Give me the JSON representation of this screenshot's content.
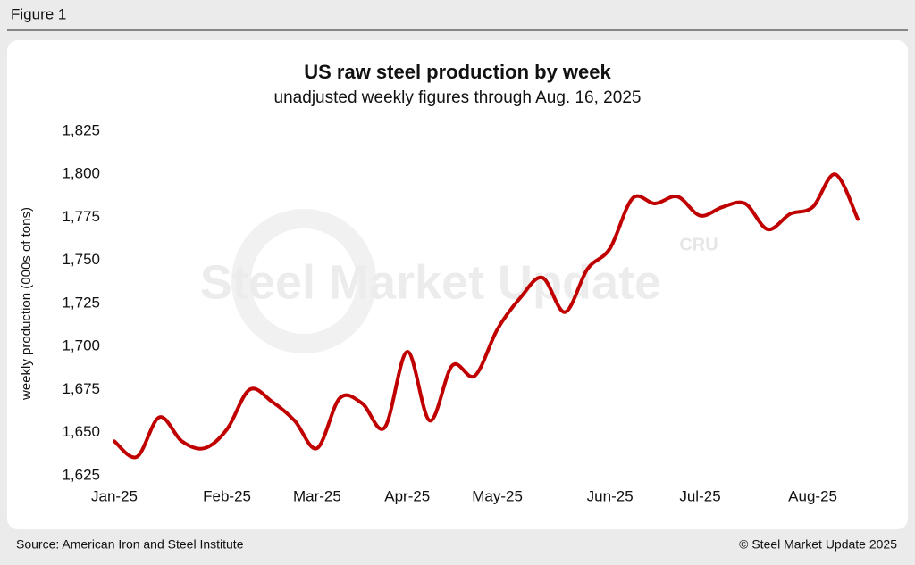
{
  "figure_label": "Figure 1",
  "chart_data": {
    "type": "line",
    "title": "US raw steel production by week",
    "subtitle": "unadjusted weekly figures through Aug. 16, 2025",
    "y_label": "weekly production (000s of tons)",
    "watermark": "Steel Market Update",
    "watermark_logo": "CRU",
    "categories": [
      "Jan-25",
      null,
      null,
      null,
      null,
      "Feb-25",
      null,
      null,
      null,
      "Mar-25",
      null,
      null,
      null,
      "Apr-25",
      null,
      null,
      null,
      "May-25",
      null,
      null,
      null,
      null,
      "Jun-25",
      null,
      null,
      null,
      "Jul-25",
      null,
      null,
      null,
      null,
      "Aug-25",
      null,
      null
    ],
    "series": [
      {
        "name": "US raw steel production",
        "color": "#c00000",
        "values": [
          1645,
          1636,
          1659,
          1645,
          1641,
          1652,
          1675,
          1668,
          1657,
          1641,
          1670,
          1667,
          1653,
          1697,
          1657,
          1689,
          1683,
          1710,
          1728,
          1740,
          1720,
          1745,
          1757,
          1786,
          1783,
          1787,
          1776,
          1781,
          1783,
          1768,
          1777,
          1781,
          1800,
          1774
        ]
      }
    ],
    "ylim": [
      1625,
      1825
    ],
    "yticks": [
      {
        "value": 1625,
        "label": "1,625"
      },
      {
        "value": 1650,
        "label": "1,650"
      },
      {
        "value": 1675,
        "label": "1,675"
      },
      {
        "value": 1700,
        "label": "1,700"
      },
      {
        "value": 1725,
        "label": "1,725"
      },
      {
        "value": 1750,
        "label": "1,750"
      },
      {
        "value": 1775,
        "label": "1,775"
      },
      {
        "value": 1800,
        "label": "1,800"
      },
      {
        "value": 1825,
        "label": "1,825"
      }
    ],
    "grid": false
  },
  "footer": {
    "source": "Source: American Iron and Steel Institute",
    "copyright": "© Steel Market Update 2025"
  }
}
